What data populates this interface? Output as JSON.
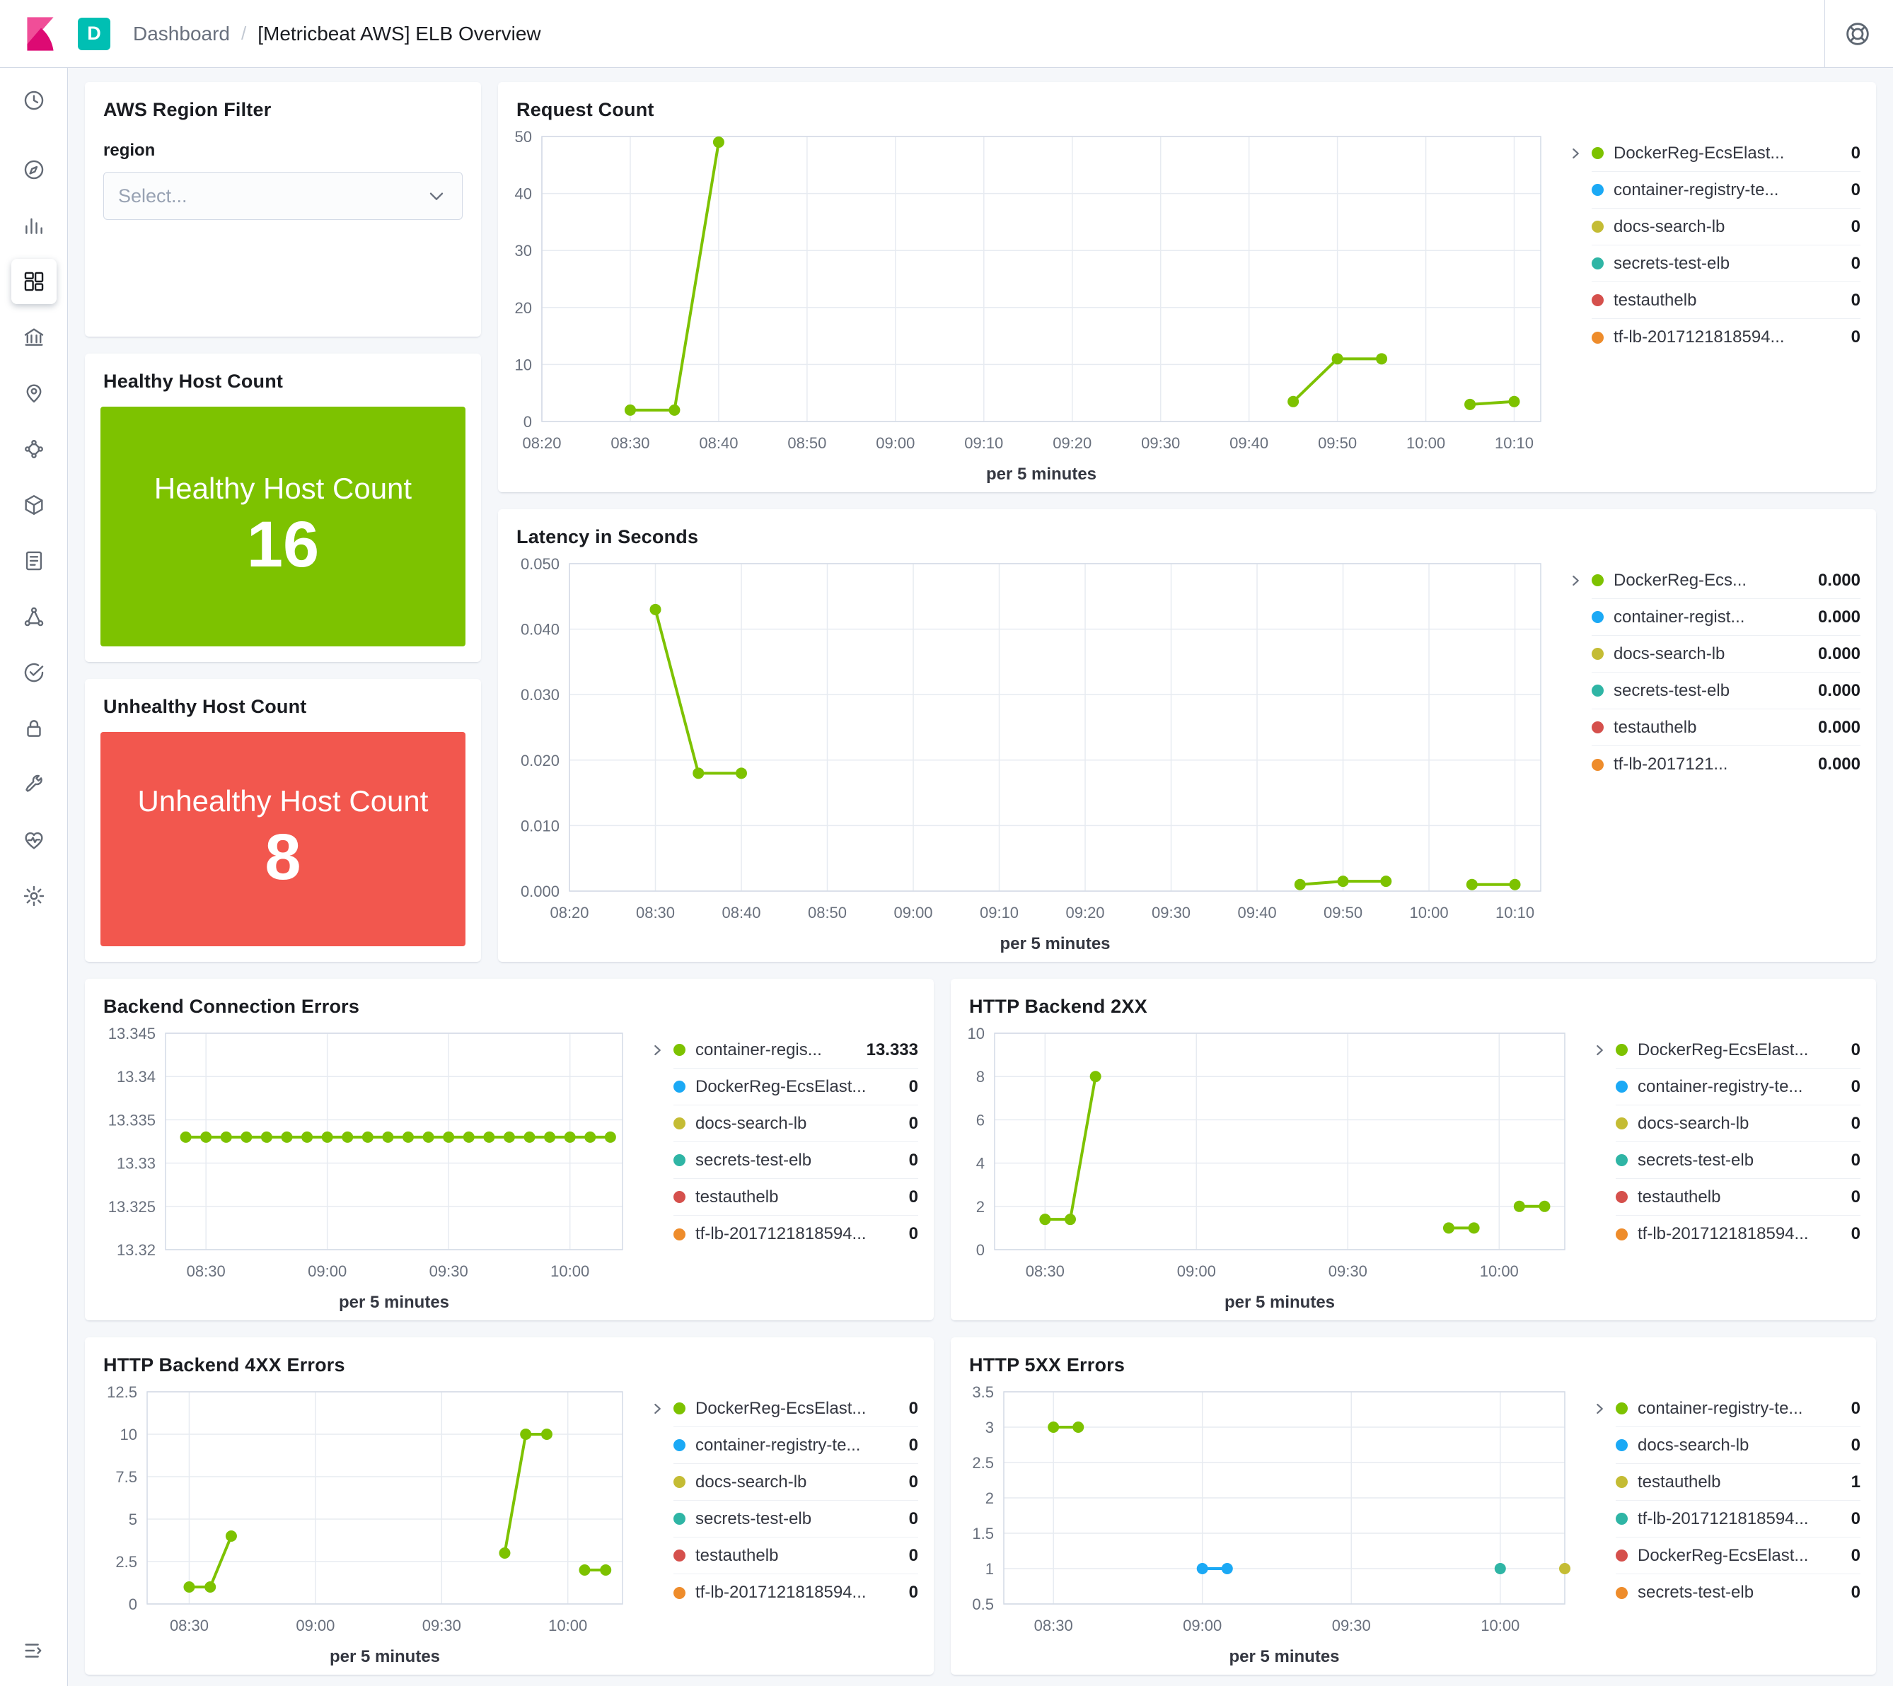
{
  "app": {
    "topbar": {
      "badge": "D",
      "breadcrumb": {
        "section": "Dashboard",
        "separator": "/",
        "current": "[Metricbeat AWS] ELB Overview"
      }
    }
  },
  "colors": {
    "green": "#7DC200",
    "blue": "#1BA9F5",
    "yellow": "#C4BC34",
    "teal": "#2FB5A5",
    "red": "#D5504C",
    "orange": "#EE8C2B",
    "healthy_bg": "#7DC200",
    "unhealthy_bg": "#F2574E",
    "badge_bg": "#00BFB3"
  },
  "sidebar": {
    "items": [
      {
        "name": "recently-viewed",
        "icon": "clock-icon"
      },
      {
        "name": "discover",
        "icon": "compass-icon"
      },
      {
        "name": "visualize",
        "icon": "bar-chart-icon"
      },
      {
        "name": "dashboard",
        "icon": "dashboard-grid-icon",
        "active": true
      },
      {
        "name": "canvas",
        "icon": "bank-building-icon"
      },
      {
        "name": "maps",
        "icon": "map-pin-icon"
      },
      {
        "name": "machine-learning",
        "icon": "nodes-cluster-icon"
      },
      {
        "name": "infrastructure",
        "icon": "cube-icon"
      },
      {
        "name": "logs",
        "icon": "document-icon"
      },
      {
        "name": "apm",
        "icon": "branch-nodes-icon"
      },
      {
        "name": "uptime",
        "icon": "check-circle-icon"
      },
      {
        "name": "siem",
        "icon": "lock-icon"
      },
      {
        "name": "dev-tools",
        "icon": "wrench-icon"
      },
      {
        "name": "stack-monitoring",
        "icon": "heartbeat-icon"
      },
      {
        "name": "management",
        "icon": "gear-icon"
      },
      {
        "name": "collapse-navigation",
        "icon": "collapse-menu-icon"
      }
    ]
  },
  "region_filter": {
    "title": "AWS Region Filter",
    "label": "region",
    "placeholder": "Select..."
  },
  "healthy": {
    "title": "Healthy Host Count",
    "label": "Healthy Host Count",
    "value": "16"
  },
  "unhealthy": {
    "title": "Unhealthy Host Count",
    "label": "Unhealthy Host Count",
    "value": "8"
  },
  "chart_data": [
    {
      "type": "line",
      "title": "Request Count",
      "xlabel": "per 5 minutes",
      "x_domain": [
        0,
        113
      ],
      "x_ticks": [
        [
          0,
          "08:20"
        ],
        [
          10,
          "08:30"
        ],
        [
          20,
          "08:40"
        ],
        [
          30,
          "08:50"
        ],
        [
          40,
          "09:00"
        ],
        [
          50,
          "09:10"
        ],
        [
          60,
          "09:20"
        ],
        [
          70,
          "09:30"
        ],
        [
          80,
          "09:40"
        ],
        [
          90,
          "09:50"
        ],
        [
          100,
          "10:00"
        ],
        [
          110,
          "10:10"
        ]
      ],
      "y_domain": [
        0,
        50
      ],
      "y_ticks": [
        [
          0,
          "0"
        ],
        [
          10,
          "10"
        ],
        [
          20,
          "20"
        ],
        [
          30,
          "30"
        ],
        [
          40,
          "40"
        ],
        [
          50,
          "50"
        ]
      ],
      "series": [
        {
          "name": "DockerReg-EcsElast...",
          "color": "#7DC200",
          "segments": [
            [
              [
                10,
                2
              ],
              [
                15,
                2
              ],
              [
                20,
                49
              ]
            ],
            [
              [
                85,
                3.5
              ],
              [
                90,
                11
              ],
              [
                95,
                11
              ]
            ],
            [
              [
                105,
                3
              ],
              [
                110,
                3.5
              ]
            ]
          ]
        }
      ],
      "legend": [
        {
          "label": "DockerReg-EcsElast...",
          "value": "0",
          "color": "#7DC200"
        },
        {
          "label": "container-registry-te...",
          "value": "0",
          "color": "#1BA9F5"
        },
        {
          "label": "docs-search-lb",
          "value": "0",
          "color": "#C4BC34"
        },
        {
          "label": "secrets-test-elb",
          "value": "0",
          "color": "#2FB5A5"
        },
        {
          "label": "testauthelb",
          "value": "0",
          "color": "#D5504C"
        },
        {
          "label": "tf-lb-2017121818594...",
          "value": "0",
          "color": "#EE8C2B"
        }
      ]
    },
    {
      "type": "line",
      "title": "Latency in Seconds",
      "xlabel": "per 5 minutes",
      "x_domain": [
        0,
        113
      ],
      "x_ticks": [
        [
          0,
          "08:20"
        ],
        [
          10,
          "08:30"
        ],
        [
          20,
          "08:40"
        ],
        [
          30,
          "08:50"
        ],
        [
          40,
          "09:00"
        ],
        [
          50,
          "09:10"
        ],
        [
          60,
          "09:20"
        ],
        [
          70,
          "09:30"
        ],
        [
          80,
          "09:40"
        ],
        [
          90,
          "09:50"
        ],
        [
          100,
          "10:00"
        ],
        [
          110,
          "10:10"
        ]
      ],
      "y_domain": [
        0,
        0.05
      ],
      "y_ticks": [
        [
          0,
          "0.000"
        ],
        [
          0.01,
          "0.010"
        ],
        [
          0.02,
          "0.020"
        ],
        [
          0.03,
          "0.030"
        ],
        [
          0.04,
          "0.040"
        ],
        [
          0.05,
          "0.050"
        ]
      ],
      "series": [
        {
          "name": "DockerReg-Ecs...",
          "color": "#7DC200",
          "segments": [
            [
              [
                10,
                0.043
              ],
              [
                15,
                0.018
              ],
              [
                20,
                0.018
              ]
            ],
            [
              [
                85,
                0.001
              ],
              [
                90,
                0.0015
              ],
              [
                95,
                0.0015
              ]
            ],
            [
              [
                105,
                0.001
              ],
              [
                110,
                0.001
              ]
            ]
          ]
        }
      ],
      "legend": [
        {
          "label": "DockerReg-Ecs...",
          "value": "0.000",
          "color": "#7DC200"
        },
        {
          "label": "container-regist...",
          "value": "0.000",
          "color": "#1BA9F5"
        },
        {
          "label": "docs-search-lb",
          "value": "0.000",
          "color": "#C4BC34"
        },
        {
          "label": "secrets-test-elb",
          "value": "0.000",
          "color": "#2FB5A5"
        },
        {
          "label": "testauthelb",
          "value": "0.000",
          "color": "#D5504C"
        },
        {
          "label": "tf-lb-2017121...",
          "value": "0.000",
          "color": "#EE8C2B"
        }
      ]
    },
    {
      "type": "line",
      "title": "Backend Connection Errors",
      "xlabel": "per 5 minutes",
      "x_domain": [
        0,
        113
      ],
      "x_ticks": [
        [
          10,
          "08:30"
        ],
        [
          40,
          "09:00"
        ],
        [
          70,
          "09:30"
        ],
        [
          100,
          "10:00"
        ]
      ],
      "y_domain": [
        13.32,
        13.345
      ],
      "y_ticks": [
        [
          13.32,
          "13.32"
        ],
        [
          13.325,
          "13.325"
        ],
        [
          13.33,
          "13.33"
        ],
        [
          13.335,
          "13.335"
        ],
        [
          13.34,
          "13.34"
        ],
        [
          13.345,
          "13.345"
        ]
      ],
      "series": [
        {
          "name": "container-regis...",
          "color": "#7DC200",
          "segments": [
            [
              [
                5,
                13.333
              ],
              [
                10,
                13.333
              ],
              [
                15,
                13.333
              ],
              [
                20,
                13.333
              ],
              [
                25,
                13.333
              ],
              [
                30,
                13.333
              ],
              [
                35,
                13.333
              ],
              [
                40,
                13.333
              ],
              [
                45,
                13.333
              ],
              [
                50,
                13.333
              ],
              [
                55,
                13.333
              ],
              [
                60,
                13.333
              ],
              [
                65,
                13.333
              ],
              [
                70,
                13.333
              ],
              [
                75,
                13.333
              ],
              [
                80,
                13.333
              ],
              [
                85,
                13.333
              ],
              [
                90,
                13.333
              ],
              [
                95,
                13.333
              ],
              [
                100,
                13.333
              ],
              [
                105,
                13.333
              ],
              [
                110,
                13.333
              ]
            ]
          ]
        }
      ],
      "legend": [
        {
          "label": "container-regis...",
          "value": "13.333",
          "color": "#7DC200"
        },
        {
          "label": "DockerReg-EcsElast...",
          "value": "0",
          "color": "#1BA9F5"
        },
        {
          "label": "docs-search-lb",
          "value": "0",
          "color": "#C4BC34"
        },
        {
          "label": "secrets-test-elb",
          "value": "0",
          "color": "#2FB5A5"
        },
        {
          "label": "testauthelb",
          "value": "0",
          "color": "#D5504C"
        },
        {
          "label": "tf-lb-2017121818594...",
          "value": "0",
          "color": "#EE8C2B"
        }
      ]
    },
    {
      "type": "line",
      "title": "HTTP Backend 2XX",
      "xlabel": "per 5 minutes",
      "x_domain": [
        0,
        113
      ],
      "x_ticks": [
        [
          10,
          "08:30"
        ],
        [
          40,
          "09:00"
        ],
        [
          70,
          "09:30"
        ],
        [
          100,
          "10:00"
        ]
      ],
      "y_domain": [
        0,
        10
      ],
      "y_ticks": [
        [
          0,
          "0"
        ],
        [
          2,
          "2"
        ],
        [
          4,
          "4"
        ],
        [
          6,
          "6"
        ],
        [
          8,
          "8"
        ],
        [
          10,
          "10"
        ]
      ],
      "series": [
        {
          "name": "DockerReg-EcsElast...",
          "color": "#7DC200",
          "segments": [
            [
              [
                10,
                1.4
              ],
              [
                15,
                1.4
              ],
              [
                20,
                8
              ]
            ],
            [
              [
                90,
                1
              ],
              [
                95,
                1
              ]
            ],
            [
              [
                104,
                2
              ],
              [
                109,
                2
              ]
            ]
          ]
        }
      ],
      "legend": [
        {
          "label": "DockerReg-EcsElast...",
          "value": "0",
          "color": "#7DC200"
        },
        {
          "label": "container-registry-te...",
          "value": "0",
          "color": "#1BA9F5"
        },
        {
          "label": "docs-search-lb",
          "value": "0",
          "color": "#C4BC34"
        },
        {
          "label": "secrets-test-elb",
          "value": "0",
          "color": "#2FB5A5"
        },
        {
          "label": "testauthelb",
          "value": "0",
          "color": "#D5504C"
        },
        {
          "label": "tf-lb-2017121818594...",
          "value": "0",
          "color": "#EE8C2B"
        }
      ]
    },
    {
      "type": "line",
      "title": "HTTP Backend 4XX Errors",
      "xlabel": "per 5 minutes",
      "x_domain": [
        0,
        113
      ],
      "x_ticks": [
        [
          10,
          "08:30"
        ],
        [
          40,
          "09:00"
        ],
        [
          70,
          "09:30"
        ],
        [
          100,
          "10:00"
        ]
      ],
      "y_domain": [
        0,
        12.5
      ],
      "y_ticks": [
        [
          0,
          "0"
        ],
        [
          2.5,
          "2.5"
        ],
        [
          5,
          "5"
        ],
        [
          7.5,
          "7.5"
        ],
        [
          10,
          "10"
        ],
        [
          12.5,
          "12.5"
        ]
      ],
      "series": [
        {
          "name": "DockerReg-EcsElast...",
          "color": "#7DC200",
          "segments": [
            [
              [
                10,
                1
              ],
              [
                15,
                1
              ],
              [
                20,
                4
              ]
            ],
            [
              [
                85,
                3
              ],
              [
                90,
                10
              ],
              [
                95,
                10
              ]
            ],
            [
              [
                104,
                2
              ],
              [
                109,
                2
              ]
            ]
          ]
        }
      ],
      "legend": [
        {
          "label": "DockerReg-EcsElast...",
          "value": "0",
          "color": "#7DC200"
        },
        {
          "label": "container-registry-te...",
          "value": "0",
          "color": "#1BA9F5"
        },
        {
          "label": "docs-search-lb",
          "value": "0",
          "color": "#C4BC34"
        },
        {
          "label": "secrets-test-elb",
          "value": "0",
          "color": "#2FB5A5"
        },
        {
          "label": "testauthelb",
          "value": "0",
          "color": "#D5504C"
        },
        {
          "label": "tf-lb-2017121818594...",
          "value": "0",
          "color": "#EE8C2B"
        }
      ]
    },
    {
      "type": "line",
      "title": "HTTP 5XX Errors",
      "xlabel": "per 5 minutes",
      "x_domain": [
        0,
        113
      ],
      "x_ticks": [
        [
          10,
          "08:30"
        ],
        [
          40,
          "09:00"
        ],
        [
          70,
          "09:30"
        ],
        [
          100,
          "10:00"
        ]
      ],
      "y_domain": [
        0.5,
        3.5
      ],
      "y_ticks": [
        [
          0.5,
          "0.5"
        ],
        [
          1,
          "1"
        ],
        [
          1.5,
          "1.5"
        ],
        [
          2,
          "2"
        ],
        [
          2.5,
          "2.5"
        ],
        [
          3,
          "3"
        ],
        [
          3.5,
          "3.5"
        ]
      ],
      "series": [
        {
          "name": "container-registry-te...",
          "color": "#7DC200",
          "segments": [
            [
              [
                10,
                3
              ],
              [
                15,
                3
              ]
            ]
          ]
        },
        {
          "name": "docs-search-lb",
          "color": "#1BA9F5",
          "segments": [
            [
              [
                40,
                1
              ],
              [
                45,
                1
              ]
            ]
          ]
        },
        {
          "name": "tf-lb-2017121818594...",
          "color": "#2FB5A5",
          "segments": [
            [
              [
                100,
                1
              ]
            ]
          ]
        },
        {
          "name": "testauthelb",
          "color": "#C4BC34",
          "segments": [
            [
              [
                113,
                1
              ]
            ]
          ]
        }
      ],
      "legend": [
        {
          "label": "container-registry-te...",
          "value": "0",
          "color": "#7DC200"
        },
        {
          "label": "docs-search-lb",
          "value": "0",
          "color": "#1BA9F5"
        },
        {
          "label": "testauthelb",
          "value": "1",
          "color": "#C4BC34"
        },
        {
          "label": "tf-lb-2017121818594...",
          "value": "0",
          "color": "#2FB5A5"
        },
        {
          "label": "DockerReg-EcsElast...",
          "value": "0",
          "color": "#D5504C"
        },
        {
          "label": "secrets-test-elb",
          "value": "0",
          "color": "#EE8C2B"
        }
      ]
    }
  ]
}
